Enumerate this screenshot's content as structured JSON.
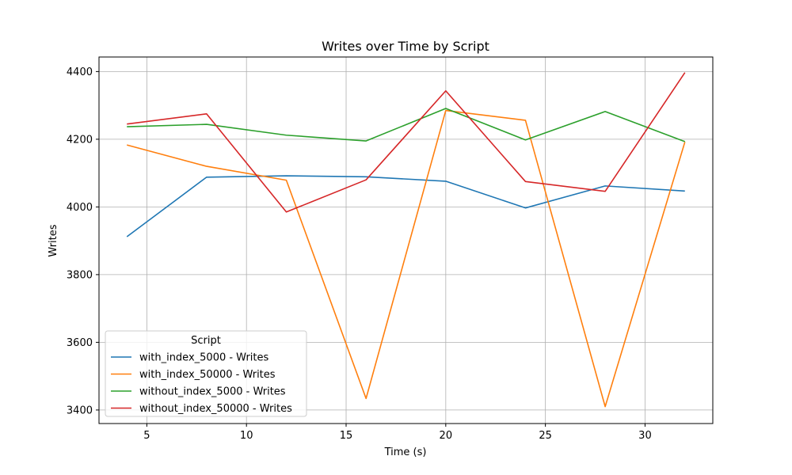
{
  "chart_data": {
    "type": "line",
    "title": "Writes over Time by Script",
    "xlabel": "Time (s)",
    "ylabel": "Writes",
    "x": [
      4,
      8,
      12,
      16,
      20,
      24,
      28,
      32
    ],
    "xlim": [
      2.6,
      33.4
    ],
    "ylim": [
      3360,
      4443
    ],
    "xticks": [
      5,
      10,
      15,
      20,
      25,
      30
    ],
    "yticks": [
      3400,
      3600,
      3800,
      4000,
      4200,
      4400
    ],
    "grid": true,
    "legend": {
      "title": "Script",
      "position": "lower-left"
    },
    "series": [
      {
        "name": "with_index_5000 - Writes",
        "color": "#1f77b4",
        "values": [
          3912,
          4088,
          4092,
          4089,
          4076,
          3997,
          4062,
          4047
        ]
      },
      {
        "name": "with_index_50000 - Writes",
        "color": "#ff7f0e",
        "values": [
          4183,
          4120,
          4079,
          3434,
          4285,
          4256,
          3410,
          4192
        ]
      },
      {
        "name": "without_index_5000 - Writes",
        "color": "#2ca02c",
        "values": [
          4237,
          4244,
          4212,
          4195,
          4291,
          4198,
          4282,
          4193
        ]
      },
      {
        "name": "without_index_50000 - Writes",
        "color": "#d62728",
        "values": [
          4245,
          4275,
          3985,
          4080,
          4343,
          4075,
          4046,
          4397
        ]
      }
    ]
  }
}
